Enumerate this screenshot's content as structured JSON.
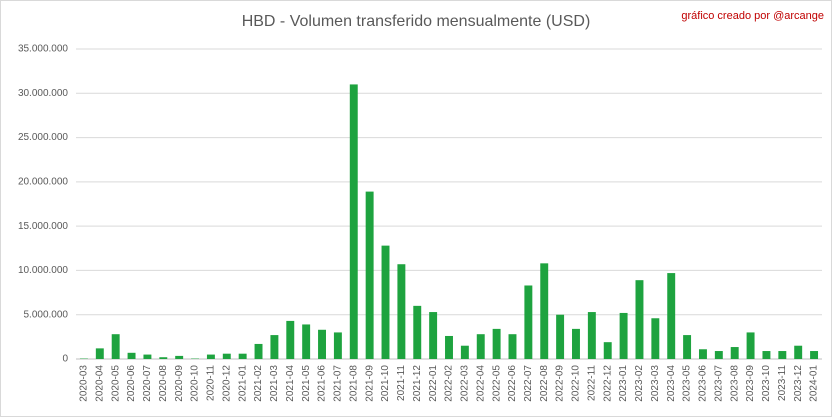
{
  "chart_data": {
    "type": "bar",
    "title": "HBD - Volumen transferido mensualmente (USD)",
    "annotation": "gráfico creado por @arcange",
    "categories": [
      "2020-03",
      "2020-04",
      "2020-05",
      "2020-06",
      "2020-07",
      "2020-08",
      "2020-09",
      "2020-10",
      "2020-11",
      "2020-12",
      "2021-01",
      "2021-02",
      "2021-03",
      "2021-04",
      "2021-05",
      "2021-06",
      "2021-07",
      "2021-08",
      "2021-09",
      "2021-10",
      "2021-11",
      "2021-12",
      "2022-01",
      "2022-02",
      "2022-03",
      "2022-04",
      "2022-05",
      "2022-06",
      "2022-07",
      "2022-08",
      "2022-09",
      "2022-10",
      "2022-11",
      "2022-12",
      "2023-01",
      "2023-02",
      "2023-03",
      "2023-04",
      "2023-05",
      "2023-06",
      "2023-07",
      "2023-08",
      "2023-09",
      "2023-10",
      "2023-11",
      "2023-12",
      "2024-01"
    ],
    "values": [
      50000,
      1200000,
      2800000,
      700000,
      500000,
      200000,
      350000,
      50000,
      500000,
      600000,
      600000,
      1700000,
      2700000,
      4300000,
      3900000,
      3300000,
      3000000,
      31000000,
      18900000,
      12800000,
      10700000,
      6000000,
      5300000,
      2600000,
      1500000,
      2800000,
      3400000,
      2800000,
      8300000,
      10800000,
      5000000,
      3400000,
      5300000,
      1900000,
      5200000,
      8900000,
      4600000,
      9700000,
      2700000,
      1100000,
      900000,
      1350000,
      3000000,
      900000,
      900000,
      1500000,
      900000
    ],
    "color": "#1ea33f",
    "ylim": [
      0,
      35000000
    ],
    "yticks": [
      0,
      {
        "value": 5000000,
        "label": "5.000.000"
      },
      {
        "value": 10000000,
        "label": "10.000.000"
      },
      {
        "value": 15000000,
        "label": "15.000.000"
      },
      {
        "value": 20000000,
        "label": "20.000.000"
      },
      {
        "value": 25000000,
        "label": "25.000.000"
      },
      {
        "value": 30000000,
        "label": "30.000.000"
      },
      {
        "value": 35000000,
        "label": "35.000.000"
      }
    ],
    "grid": true
  }
}
